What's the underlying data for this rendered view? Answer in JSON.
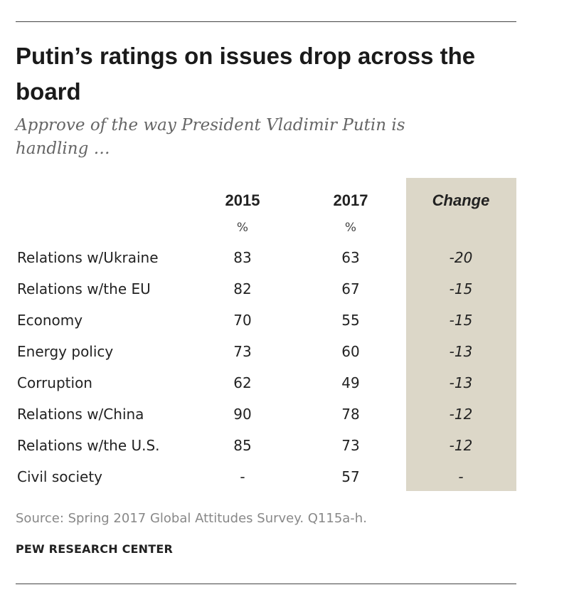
{
  "chart_data": {
    "type": "table",
    "title": "Putin’s ratings on issues drop across the board",
    "subtitle": "Approve of the way President Vladimir Putin is handling …",
    "columns": [
      "2015",
      "2017",
      "Change"
    ],
    "units": [
      "%",
      "%"
    ],
    "rows": [
      {
        "label": "Relations w/Ukraine",
        "y2015": "83",
        "y2017": "63",
        "change": "-20"
      },
      {
        "label": "Relations w/the EU",
        "y2015": "82",
        "y2017": "67",
        "change": "-15"
      },
      {
        "label": "Economy",
        "y2015": "70",
        "y2017": "55",
        "change": "-15"
      },
      {
        "label": "Energy policy",
        "y2015": "73",
        "y2017": "60",
        "change": "-13"
      },
      {
        "label": "Corruption",
        "y2015": "62",
        "y2017": "49",
        "change": "-13"
      },
      {
        "label": "Relations w/China",
        "y2015": "90",
        "y2017": "78",
        "change": "-12"
      },
      {
        "label": "Relations w/the U.S.",
        "y2015": "85",
        "y2017": "73",
        "change": "-12"
      },
      {
        "label": "Civil society",
        "y2015": "-",
        "y2017": "57",
        "change": "-"
      }
    ],
    "source": "Source: Spring 2017 Global Attitudes Survey. Q115a-h.",
    "credit": "PEW RESEARCH CENTER",
    "colors": {
      "change_bg": "#dcd7c8"
    }
  }
}
